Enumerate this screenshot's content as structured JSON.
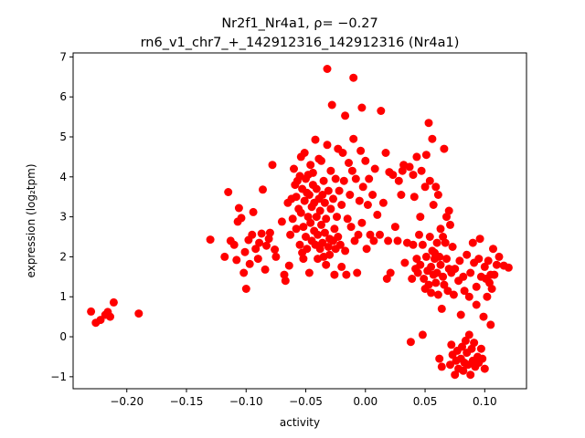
{
  "chart_data": {
    "type": "scatter",
    "title_line1": "Nr2f1_Nr4a1, ρ= −0.27",
    "title_line2": "rn6_v1_chr7_+_142912316_142912316 (Nr4a1)",
    "xlabel": "activity",
    "ylabel": "expression (log₂tpm)",
    "xlim": [
      -0.245,
      0.135
    ],
    "ylim": [
      -1.3,
      7.1
    ],
    "xticks": [
      -0.2,
      -0.15,
      -0.1,
      -0.05,
      0.0,
      0.05,
      0.1
    ],
    "xtick_labels": [
      "−0.20",
      "−0.15",
      "−0.10",
      "−0.05",
      "0.00",
      "0.05",
      "0.10"
    ],
    "yticks": [
      -1,
      0,
      1,
      2,
      3,
      4,
      5,
      6,
      7
    ],
    "ytick_labels": [
      "−1",
      "0",
      "1",
      "2",
      "3",
      "4",
      "5",
      "6",
      "7"
    ],
    "marker_color": "#ff0000",
    "grid": false,
    "points": [
      [
        -0.23,
        0.63
      ],
      [
        -0.226,
        0.35
      ],
      [
        -0.222,
        0.42
      ],
      [
        -0.218,
        0.55
      ],
      [
        -0.216,
        0.62
      ],
      [
        -0.214,
        0.5
      ],
      [
        -0.211,
        0.86
      ],
      [
        -0.19,
        0.58
      ],
      [
        -0.13,
        2.43
      ],
      [
        -0.118,
        2.0
      ],
      [
        -0.115,
        3.62
      ],
      [
        -0.113,
        2.4
      ],
      [
        -0.11,
        2.3
      ],
      [
        -0.108,
        1.92
      ],
      [
        -0.107,
        2.88
      ],
      [
        -0.106,
        3.22
      ],
      [
        -0.104,
        2.97
      ],
      [
        -0.102,
        1.6
      ],
      [
        -0.101,
        2.12
      ],
      [
        -0.1,
        1.2
      ],
      [
        -0.098,
        2.42
      ],
      [
        -0.097,
        1.82
      ],
      [
        -0.095,
        2.55
      ],
      [
        -0.094,
        3.12
      ],
      [
        -0.092,
        2.2
      ],
      [
        -0.09,
        1.95
      ],
      [
        -0.089,
        2.35
      ],
      [
        -0.087,
        2.58
      ],
      [
        -0.086,
        3.68
      ],
      [
        -0.084,
        1.68
      ],
      [
        -0.083,
        2.28
      ],
      [
        -0.081,
        2.45
      ],
      [
        -0.08,
        2.6
      ],
      [
        -0.078,
        4.3
      ],
      [
        -0.076,
        2.18
      ],
      [
        -0.075,
        2.0
      ],
      [
        -0.07,
        2.88
      ],
      [
        -0.068,
        1.55
      ],
      [
        -0.067,
        1.4
      ],
      [
        -0.065,
        3.35
      ],
      [
        -0.064,
        1.78
      ],
      [
        -0.063,
        2.55
      ],
      [
        -0.062,
        3.45
      ],
      [
        -0.061,
        2.95
      ],
      [
        -0.06,
        4.2
      ],
      [
        -0.059,
        3.8
      ],
      [
        -0.058,
        3.5
      ],
      [
        -0.058,
        2.7
      ],
      [
        -0.057,
        3.9
      ],
      [
        -0.056,
        3.2
      ],
      [
        -0.055,
        2.3
      ],
      [
        -0.055,
        4.02
      ],
      [
        -0.054,
        4.5
      ],
      [
        -0.054,
        3.1
      ],
      [
        -0.053,
        2.1
      ],
      [
        -0.053,
        3.7
      ],
      [
        -0.052,
        1.95
      ],
      [
        -0.052,
        2.75
      ],
      [
        -0.051,
        3.4
      ],
      [
        -0.051,
        4.6
      ],
      [
        -0.05,
        3.95
      ],
      [
        -0.05,
        2.5
      ],
      [
        -0.049,
        3.6
      ],
      [
        -0.049,
        2.2
      ],
      [
        -0.048,
        4.05
      ],
      [
        -0.048,
        3.0
      ],
      [
        -0.047,
        1.6
      ],
      [
        -0.047,
        3.55
      ],
      [
        -0.046,
        2.85
      ],
      [
        -0.046,
        4.3
      ],
      [
        -0.045,
        3.25
      ],
      [
        -0.045,
        2.4
      ],
      [
        -0.044,
        3.8
      ],
      [
        -0.044,
        4.1
      ],
      [
        -0.043,
        2.65
      ],
      [
        -0.043,
        3.35
      ],
      [
        -0.042,
        2.3
      ],
      [
        -0.042,
        4.93
      ],
      [
        -0.041,
        3.0
      ],
      [
        -0.041,
        3.7
      ],
      [
        -0.04,
        2.55
      ],
      [
        -0.04,
        1.95
      ],
      [
        -0.039,
        3.45
      ],
      [
        -0.039,
        4.45
      ],
      [
        -0.038,
        2.2
      ],
      [
        -0.038,
        3.15
      ],
      [
        -0.037,
        2.8
      ],
      [
        -0.037,
        4.4
      ],
      [
        -0.036,
        3.55
      ],
      [
        -0.036,
        2.35
      ],
      [
        -0.035,
        3.9
      ],
      [
        -0.035,
        2.0
      ],
      [
        -0.034,
        2.6
      ],
      [
        -0.034,
        3.35
      ],
      [
        -0.033,
        1.8
      ],
      [
        -0.033,
        2.95
      ],
      [
        -0.032,
        6.7
      ],
      [
        -0.032,
        4.8
      ],
      [
        -0.031,
        2.25
      ],
      [
        -0.031,
        3.65
      ],
      [
        -0.03,
        2.45
      ],
      [
        -0.03,
        2.05
      ],
      [
        -0.029,
        3.2
      ],
      [
        -0.029,
        4.15
      ],
      [
        -0.028,
        5.8
      ],
      [
        -0.027,
        2.4
      ],
      [
        -0.027,
        3.45
      ],
      [
        -0.026,
        1.55
      ],
      [
        -0.026,
        2.7
      ],
      [
        -0.025,
        3.95
      ],
      [
        -0.025,
        2.2
      ],
      [
        -0.024,
        3.0
      ],
      [
        -0.023,
        4.7
      ],
      [
        -0.023,
        2.5
      ],
      [
        -0.022,
        3.65
      ],
      [
        -0.021,
        2.3
      ],
      [
        -0.02,
        1.75
      ],
      [
        -0.02,
        3.3
      ],
      [
        -0.019,
        4.6
      ],
      [
        -0.018,
        3.9
      ],
      [
        -0.017,
        5.53
      ],
      [
        -0.017,
        2.15
      ],
      [
        -0.016,
        1.55
      ],
      [
        -0.015,
        2.95
      ],
      [
        -0.014,
        4.35
      ],
      [
        -0.013,
        3.55
      ],
      [
        -0.012,
        2.75
      ],
      [
        -0.011,
        4.15
      ],
      [
        -0.01,
        6.48
      ],
      [
        -0.01,
        4.95
      ],
      [
        -0.009,
        2.4
      ],
      [
        -0.008,
        3.95
      ],
      [
        -0.007,
        1.6
      ],
      [
        -0.006,
        2.55
      ],
      [
        -0.005,
        3.4
      ],
      [
        -0.004,
        4.65
      ],
      [
        -0.003,
        5.73
      ],
      [
        -0.003,
        2.85
      ],
      [
        -0.002,
        3.75
      ],
      [
        0.0,
        4.4
      ],
      [
        0.001,
        2.2
      ],
      [
        0.002,
        3.3
      ],
      [
        0.003,
        3.95
      ],
      [
        0.004,
        2.55
      ],
      [
        0.006,
        3.55
      ],
      [
        0.007,
        2.4
      ],
      [
        0.008,
        4.2
      ],
      [
        0.01,
        3.05
      ],
      [
        0.012,
        2.55
      ],
      [
        0.013,
        5.65
      ],
      [
        0.015,
        3.35
      ],
      [
        0.017,
        4.6
      ],
      [
        0.018,
        1.45
      ],
      [
        0.019,
        2.4
      ],
      [
        0.02,
        4.12
      ],
      [
        0.021,
        1.6
      ],
      [
        0.023,
        4.05
      ],
      [
        0.025,
        2.75
      ],
      [
        0.027,
        2.4
      ],
      [
        0.028,
        3.9
      ],
      [
        0.03,
        3.55
      ],
      [
        0.031,
        4.15
      ],
      [
        0.032,
        4.3
      ],
      [
        0.033,
        1.85
      ],
      [
        0.035,
        2.35
      ],
      [
        0.037,
        4.25
      ],
      [
        0.038,
        -0.13
      ],
      [
        0.039,
        1.45
      ],
      [
        0.04,
        2.3
      ],
      [
        0.04,
        4.05
      ],
      [
        0.041,
        3.5
      ],
      [
        0.042,
        1.7
      ],
      [
        0.043,
        1.95
      ],
      [
        0.043,
        4.5
      ],
      [
        0.044,
        1.6
      ],
      [
        0.045,
        2.55
      ],
      [
        0.046,
        1.8
      ],
      [
        0.046,
        3.0
      ],
      [
        0.047,
        4.15
      ],
      [
        0.048,
        2.3
      ],
      [
        0.048,
        0.05
      ],
      [
        0.049,
        1.45
      ],
      [
        0.05,
        3.75
      ],
      [
        0.05,
        1.2
      ],
      [
        0.051,
        2.0
      ],
      [
        0.051,
        4.55
      ],
      [
        0.052,
        1.65
      ],
      [
        0.053,
        5.35
      ],
      [
        0.053,
        1.3
      ],
      [
        0.054,
        2.5
      ],
      [
        0.054,
        3.9
      ],
      [
        0.055,
        1.75
      ],
      [
        0.055,
        1.1
      ],
      [
        0.056,
        2.15
      ],
      [
        0.056,
        4.95
      ],
      [
        0.057,
        1.55
      ],
      [
        0.057,
        3.3
      ],
      [
        0.058,
        1.95
      ],
      [
        0.058,
        2.1
      ],
      [
        0.059,
        1.35
      ],
      [
        0.059,
        3.75
      ],
      [
        0.06,
        2.35
      ],
      [
        0.06,
        1.6
      ],
      [
        0.061,
        3.55
      ],
      [
        0.061,
        1.05
      ],
      [
        0.062,
        -0.55
      ],
      [
        0.062,
        2.0
      ],
      [
        0.063,
        1.8
      ],
      [
        0.063,
        2.7
      ],
      [
        0.064,
        -0.75
      ],
      [
        0.064,
        0.7
      ],
      [
        0.065,
        1.5
      ],
      [
        0.065,
        2.5
      ],
      [
        0.066,
        4.7
      ],
      [
        0.066,
        1.3
      ],
      [
        0.067,
        2.35
      ],
      [
        0.068,
        1.95
      ],
      [
        0.068,
        3.0
      ],
      [
        0.069,
        1.15
      ],
      [
        0.07,
        3.15
      ],
      [
        0.07,
        1.7
      ],
      [
        0.071,
        -0.7
      ],
      [
        0.071,
        2.8
      ],
      [
        0.072,
        1.6
      ],
      [
        0.072,
        -0.2
      ],
      [
        0.073,
        2.25
      ],
      [
        0.073,
        -0.45
      ],
      [
        0.074,
        1.05
      ],
      [
        0.075,
        -0.95
      ],
      [
        0.075,
        1.7
      ],
      [
        0.076,
        -0.6
      ],
      [
        0.077,
        -0.35
      ],
      [
        0.078,
        1.4
      ],
      [
        0.078,
        -0.8
      ],
      [
        0.079,
        1.9
      ],
      [
        0.08,
        -0.55
      ],
      [
        0.08,
        0.55
      ],
      [
        0.081,
        -0.25
      ],
      [
        0.082,
        1.5
      ],
      [
        0.082,
        -0.85
      ],
      [
        0.083,
        -0.65
      ],
      [
        0.083,
        1.15
      ],
      [
        0.084,
        -0.1
      ],
      [
        0.085,
        2.05
      ],
      [
        0.085,
        -0.4
      ],
      [
        0.086,
        -0.7
      ],
      [
        0.087,
        1.0
      ],
      [
        0.087,
        0.05
      ],
      [
        0.088,
        -0.95
      ],
      [
        0.088,
        1.6
      ],
      [
        0.089,
        -0.3
      ],
      [
        0.09,
        -0.6
      ],
      [
        0.09,
        2.35
      ],
      [
        0.091,
        1.85
      ],
      [
        0.091,
        -0.15
      ],
      [
        0.092,
        -0.75
      ],
      [
        0.093,
        1.25
      ],
      [
        0.093,
        0.8
      ],
      [
        0.094,
        -0.5
      ],
      [
        0.095,
        -0.65
      ],
      [
        0.095,
        1.95
      ],
      [
        0.096,
        2.45
      ],
      [
        0.097,
        1.5
      ],
      [
        0.097,
        -0.3
      ],
      [
        0.098,
        -0.55
      ],
      [
        0.099,
        0.5
      ],
      [
        0.1,
        1.75
      ],
      [
        0.1,
        -0.8
      ],
      [
        0.101,
        1.45
      ],
      [
        0.102,
        1.0
      ],
      [
        0.103,
        1.9
      ],
      [
        0.104,
        1.35
      ],
      [
        0.105,
        0.3
      ],
      [
        0.105,
        1.55
      ],
      [
        0.106,
        1.2
      ],
      [
        0.107,
        2.2
      ],
      [
        0.108,
        1.55
      ],
      [
        0.11,
        1.8
      ],
      [
        0.112,
        2.0
      ],
      [
        0.116,
        1.78
      ],
      [
        0.12,
        1.73
      ]
    ]
  }
}
